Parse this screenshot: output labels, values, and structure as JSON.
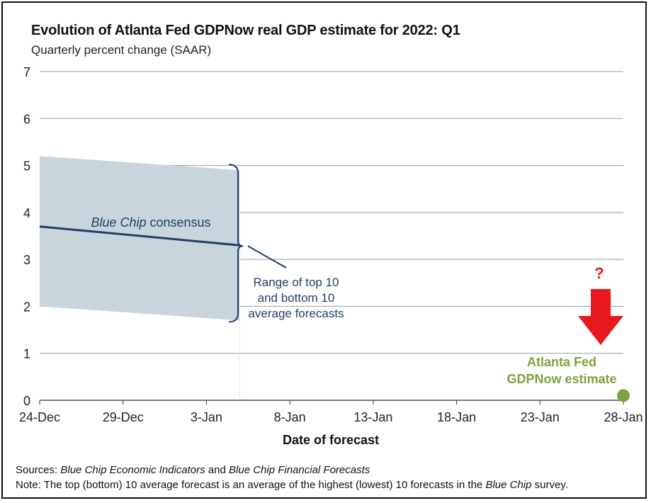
{
  "chart_data": {
    "type": "line",
    "title": "Evolution of Atlanta Fed GDPNow real GDP estimate for 2022: Q1",
    "subtitle": "Quarterly percent change (SAAR)",
    "xlabel": "Date of forecast",
    "ylabel": "",
    "x_ticks": [
      "24-Dec",
      "29-Dec",
      "3-Jan",
      "8-Jan",
      "13-Jan",
      "18-Jan",
      "23-Jan",
      "28-Jan"
    ],
    "xlim": [
      "24-Dec",
      "28-Jan"
    ],
    "ylim": [
      0,
      7
    ],
    "y_ticks": [
      0,
      1,
      2,
      3,
      4,
      5,
      6,
      7
    ],
    "grid": "horizontal",
    "series": [
      {
        "name": "Blue Chip consensus",
        "kind": "line",
        "color": "#1f3f66",
        "points": [
          [
            "24-Dec",
            3.7
          ],
          [
            "5-Jan",
            3.3
          ]
        ]
      },
      {
        "name": "Range of top 10 and bottom 10 average forecasts",
        "kind": "band",
        "color": "#c9d5dd",
        "upper": [
          [
            "24-Dec",
            5.2
          ],
          [
            "5-Jan",
            4.9
          ]
        ],
        "lower": [
          [
            "24-Dec",
            2.0
          ],
          [
            "5-Jan",
            1.7
          ]
        ]
      },
      {
        "name": "Atlanta Fed GDPNow estimate",
        "kind": "point",
        "color": "#7fa13f",
        "points": [
          [
            "28-Jan",
            0.1
          ]
        ]
      }
    ],
    "annotations": {
      "consensus_label_italic": "Blue Chip",
      "consensus_label_rest": " consensus",
      "range_label_lines": [
        "Range of top 10",
        "and bottom 10",
        "average forecasts"
      ],
      "gdpnow_label_lines": [
        "Atlanta Fed",
        "GDPNow estimate"
      ],
      "question_mark": "?"
    },
    "colors": {
      "band": "#c9d5dd",
      "consensus_line": "#1f3f66",
      "gdpnow": "#7fa13f",
      "arrow": "#e8191c",
      "grid": "#9a9a9a",
      "axis_text": "#222222"
    }
  },
  "footer": {
    "sources_label": "Sources",
    "sources_sep": ": ",
    "source_1": "Blue Chip Economic Indicators",
    "source_and": " and ",
    "source_2": "Blue Chip Financial Forecasts",
    "note_label": "Note",
    "note_text_1": ": The top (bottom) 10 average forecast is an average of the highest (lowest) 10 forecasts in the ",
    "note_italic": "Blue Chip",
    "note_text_2": " survey."
  }
}
